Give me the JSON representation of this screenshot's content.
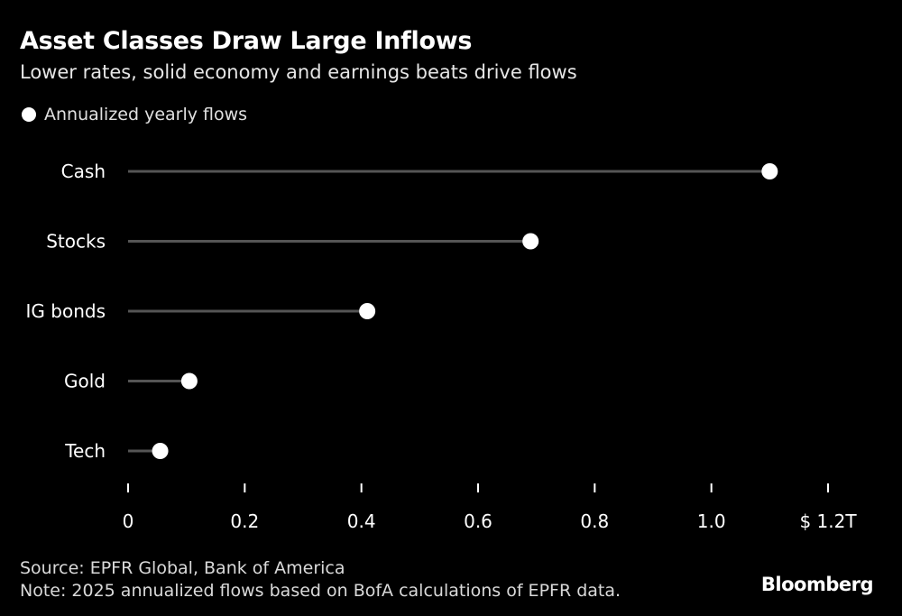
{
  "header": {
    "title": "Asset Classes Draw Large Inflows",
    "subtitle": "Lower rates, solid economy and earnings beats drive flows"
  },
  "legend": {
    "label": "Annualized yearly flows"
  },
  "chart_data": {
    "type": "lollipop",
    "orientation": "horizontal",
    "categories": [
      "Cash",
      "Stocks",
      "IG bonds",
      "Gold",
      "Tech"
    ],
    "series": [
      {
        "name": "Annualized yearly flows",
        "values": [
          1.1,
          0.69,
          0.41,
          0.105,
          0.055
        ]
      }
    ],
    "xlim": [
      0,
      1.2
    ],
    "x_ticks": [
      0,
      0.2,
      0.4,
      0.6,
      0.8,
      1.0,
      1.2
    ],
    "x_tick_labels": [
      "0",
      "0.2",
      "0.4",
      "0.6",
      "0.8",
      "1.0",
      "$ 1.2T"
    ],
    "grid": false,
    "legend_position": "top-left"
  },
  "footer": {
    "source": "Source: EPFR Global, Bank of America",
    "note": "Note: 2025 annualized flows based on BofA calculations of EPFR data."
  },
  "brand": {
    "name": "Bloomberg"
  },
  "colors": {
    "background": "#000000",
    "text": "#ffffff",
    "stem": "#555555",
    "dot": "#ffffff",
    "tick": "#ffffff"
  }
}
